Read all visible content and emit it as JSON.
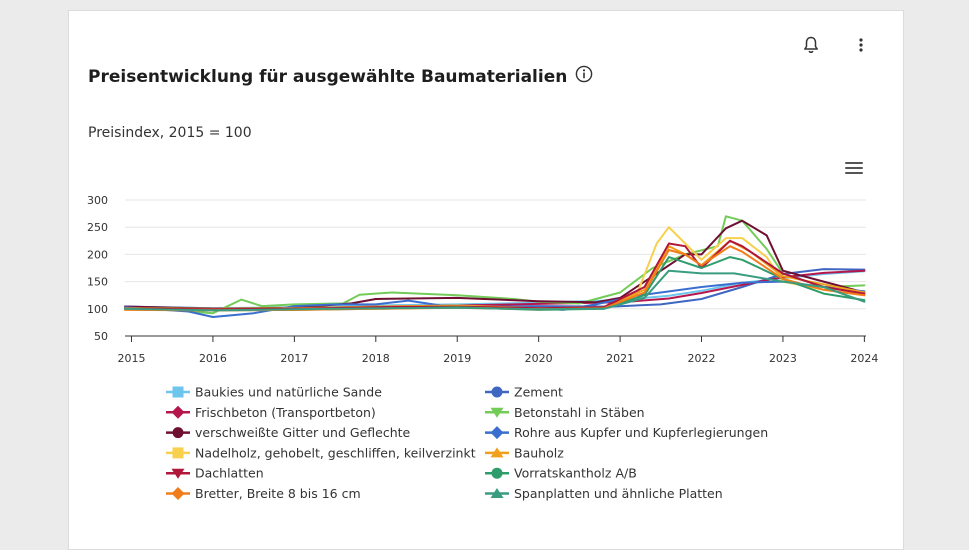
{
  "header": {
    "title": "Preisentwicklung für ausgewählte Baumaterialien",
    "info_icon": "info-circle-icon",
    "bell_icon": "bell-icon",
    "more_icon": "vertical-dots-icon",
    "menu_icon": "hamburger-menu-icon"
  },
  "chart_data": {
    "type": "line",
    "subtitle": "Preisindex, 2015 = 100",
    "x_ticks": [
      "2015",
      "2016",
      "2017",
      "2018",
      "2019",
      "2020",
      "2021",
      "2022",
      "2023",
      "2024"
    ],
    "xlim": [
      2014.92,
      2024.02
    ],
    "ylim": [
      50,
      300
    ],
    "y_ticks": [
      50,
      100,
      150,
      200,
      250,
      300
    ],
    "grid": true,
    "legend_position": "bottom",
    "series": [
      {
        "name": "Baukies und natürliche Sande",
        "color": "#6ec6ee",
        "marker": "square",
        "points": [
          [
            2014.92,
            104
          ],
          [
            2016,
            101
          ],
          [
            2017,
            103
          ],
          [
            2018,
            106
          ],
          [
            2019,
            108
          ],
          [
            2020,
            111
          ],
          [
            2021,
            116
          ],
          [
            2021.6,
            124
          ],
          [
            2022,
            133
          ],
          [
            2022.5,
            148
          ],
          [
            2023,
            156
          ],
          [
            2023.5,
            164
          ],
          [
            2024,
            169
          ]
        ]
      },
      {
        "name": "Zement",
        "color": "#3f66c0",
        "marker": "circle",
        "points": [
          [
            2014.92,
            104
          ],
          [
            2016,
            101
          ],
          [
            2017,
            101
          ],
          [
            2018,
            103
          ],
          [
            2019,
            104
          ],
          [
            2020,
            105
          ],
          [
            2020.9,
            104
          ],
          [
            2021.5,
            108
          ],
          [
            2022,
            118
          ],
          [
            2022.5,
            140
          ],
          [
            2023,
            164
          ],
          [
            2023.5,
            173
          ],
          [
            2024,
            172
          ]
        ]
      },
      {
        "name": "Frischbeton (Transportbeton)",
        "color": "#b5174d",
        "marker": "diamond",
        "points": [
          [
            2014.92,
            101
          ],
          [
            2016,
            99
          ],
          [
            2017,
            101
          ],
          [
            2018,
            104
          ],
          [
            2019,
            106
          ],
          [
            2020,
            109
          ],
          [
            2021,
            112
          ],
          [
            2021.6,
            119
          ],
          [
            2022,
            129
          ],
          [
            2022.5,
            144
          ],
          [
            2023,
            158
          ],
          [
            2023.5,
            166
          ],
          [
            2024,
            170
          ]
        ]
      },
      {
        "name": "Betonstahl in Stäben",
        "color": "#72cc57",
        "marker": "triangle-down",
        "points": [
          [
            2014.92,
            103
          ],
          [
            2015.5,
            98
          ],
          [
            2016,
            92
          ],
          [
            2016.35,
            117
          ],
          [
            2016.6,
            105
          ],
          [
            2017,
            108
          ],
          [
            2017.6,
            110
          ],
          [
            2017.8,
            126
          ],
          [
            2018.2,
            130
          ],
          [
            2019,
            125
          ],
          [
            2019.7,
            118
          ],
          [
            2020,
            113
          ],
          [
            2020.5,
            110
          ],
          [
            2021,
            130
          ],
          [
            2021.4,
            175
          ],
          [
            2021.8,
            200
          ],
          [
            2022.2,
            215
          ],
          [
            2022.3,
            270
          ],
          [
            2022.5,
            262
          ],
          [
            2022.8,
            210
          ],
          [
            2023,
            165
          ],
          [
            2023.5,
            140
          ],
          [
            2024,
            143
          ]
        ]
      },
      {
        "name": "verschweißte Gitter und Geflechte",
        "color": "#6e1032",
        "marker": "circle",
        "points": [
          [
            2014.92,
            104
          ],
          [
            2016,
            100
          ],
          [
            2017,
            102
          ],
          [
            2017.7,
            110
          ],
          [
            2018,
            118
          ],
          [
            2019,
            120
          ],
          [
            2020,
            114
          ],
          [
            2020.7,
            112
          ],
          [
            2021,
            120
          ],
          [
            2021.4,
            160
          ],
          [
            2021.8,
            200
          ],
          [
            2022,
            200
          ],
          [
            2022.3,
            248
          ],
          [
            2022.5,
            262
          ],
          [
            2022.8,
            235
          ],
          [
            2023,
            170
          ],
          [
            2023.5,
            150
          ],
          [
            2024,
            130
          ]
        ]
      },
      {
        "name": "Rohre aus Kupfer und Kupferlegierungen",
        "color": "#3a6fcf",
        "marker": "diamond",
        "points": [
          [
            2014.92,
            103
          ],
          [
            2015.7,
            95
          ],
          [
            2016,
            85
          ],
          [
            2016.5,
            92
          ],
          [
            2017,
            105
          ],
          [
            2017.5,
            108
          ],
          [
            2018,
            108
          ],
          [
            2018.4,
            115
          ],
          [
            2018.8,
            106
          ],
          [
            2019.5,
            104
          ],
          [
            2020,
            101
          ],
          [
            2020.3,
            98
          ],
          [
            2020.7,
            108
          ],
          [
            2021.2,
            124
          ],
          [
            2021.5,
            130
          ],
          [
            2022,
            140
          ],
          [
            2022.5,
            148
          ],
          [
            2023,
            150
          ],
          [
            2023.5,
            140
          ],
          [
            2024,
            132
          ]
        ]
      },
      {
        "name": "Nadelholz, gehobelt, geschliffen, keilverzinkt",
        "color": "#f7d04d",
        "marker": "square",
        "points": [
          [
            2014.92,
            100
          ],
          [
            2016,
            99
          ],
          [
            2017,
            100
          ],
          [
            2018,
            103
          ],
          [
            2019,
            105
          ],
          [
            2020,
            100
          ],
          [
            2020.8,
            102
          ],
          [
            2021.2,
            125
          ],
          [
            2021.45,
            220
          ],
          [
            2021.6,
            250
          ],
          [
            2021.8,
            220
          ],
          [
            2022,
            190
          ],
          [
            2022.3,
            230
          ],
          [
            2022.5,
            230
          ],
          [
            2022.8,
            195
          ],
          [
            2023,
            150
          ],
          [
            2023.5,
            135
          ],
          [
            2024,
            125
          ]
        ]
      },
      {
        "name": "Bauholz",
        "color": "#f0a01e",
        "marker": "triangle",
        "points": [
          [
            2014.92,
            101
          ],
          [
            2016,
            100
          ],
          [
            2017,
            101
          ],
          [
            2018,
            104
          ],
          [
            2019,
            106
          ],
          [
            2020,
            101
          ],
          [
            2020.8,
            103
          ],
          [
            2021.3,
            135
          ],
          [
            2021.6,
            215
          ],
          [
            2021.8,
            200
          ],
          [
            2022,
            180
          ],
          [
            2022.35,
            225
          ],
          [
            2022.6,
            205
          ],
          [
            2023,
            160
          ],
          [
            2023.5,
            145
          ],
          [
            2024,
            130
          ]
        ]
      },
      {
        "name": "Dachlatten",
        "color": "#b0173a",
        "marker": "triangle-down",
        "points": [
          [
            2014.92,
            100
          ],
          [
            2016,
            99
          ],
          [
            2017,
            100
          ],
          [
            2018,
            103
          ],
          [
            2019,
            104
          ],
          [
            2020,
            101
          ],
          [
            2020.8,
            103
          ],
          [
            2021.3,
            140
          ],
          [
            2021.6,
            220
          ],
          [
            2021.8,
            215
          ],
          [
            2022,
            175
          ],
          [
            2022.35,
            225
          ],
          [
            2022.5,
            215
          ],
          [
            2023,
            165
          ],
          [
            2023.5,
            140
          ],
          [
            2024,
            128
          ]
        ]
      },
      {
        "name": "Vorratskantholz A/B",
        "color": "#2f9c6b",
        "marker": "circle",
        "points": [
          [
            2014.92,
            99
          ],
          [
            2016,
            97
          ],
          [
            2017,
            98
          ],
          [
            2018,
            100
          ],
          [
            2019,
            103
          ],
          [
            2020,
            98
          ],
          [
            2020.8,
            100
          ],
          [
            2021.3,
            125
          ],
          [
            2021.6,
            195
          ],
          [
            2021.8,
            185
          ],
          [
            2022,
            175
          ],
          [
            2022.35,
            195
          ],
          [
            2022.5,
            190
          ],
          [
            2023,
            155
          ],
          [
            2023.5,
            128
          ],
          [
            2024,
            116
          ]
        ]
      },
      {
        "name": "Bretter, Breite 8 bis 16 cm",
        "color": "#f07d1a",
        "marker": "diamond",
        "points": [
          [
            2014.92,
            98
          ],
          [
            2016,
            97
          ],
          [
            2017,
            98
          ],
          [
            2018,
            100
          ],
          [
            2019,
            102
          ],
          [
            2020,
            99
          ],
          [
            2020.8,
            101
          ],
          [
            2021.3,
            130
          ],
          [
            2021.6,
            208
          ],
          [
            2021.8,
            200
          ],
          [
            2022,
            180
          ],
          [
            2022.35,
            215
          ],
          [
            2022.5,
            205
          ],
          [
            2023,
            155
          ],
          [
            2023.5,
            135
          ],
          [
            2024,
            125
          ]
        ]
      },
      {
        "name": "Spanplatten und ähnliche Platten",
        "color": "#3a9c80",
        "marker": "triangle",
        "points": [
          [
            2014.92,
            100
          ],
          [
            2016,
            97
          ],
          [
            2017,
            99
          ],
          [
            2018,
            101
          ],
          [
            2019,
            102
          ],
          [
            2020,
            99
          ],
          [
            2020.8,
            100
          ],
          [
            2021.3,
            120
          ],
          [
            2021.6,
            170
          ],
          [
            2022,
            165
          ],
          [
            2022.4,
            165
          ],
          [
            2022.8,
            155
          ],
          [
            2023,
            150
          ],
          [
            2023.5,
            140
          ],
          [
            2024,
            113
          ]
        ]
      }
    ]
  }
}
